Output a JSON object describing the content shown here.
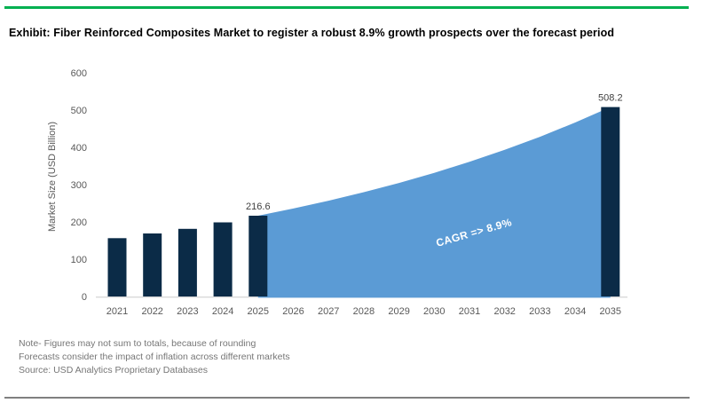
{
  "frame": {
    "top_rule_color": "#00B050",
    "bottom_rule_color": "#808080"
  },
  "header": {
    "title": "Exhibit: Fiber Reinforced Composites Market to register a robust 8.9% growth prospects over the forecast period"
  },
  "chart_data": {
    "type": "combo-bar-area",
    "title": "",
    "xlabel": "",
    "ylabel": "Market Size (USD Billion)",
    "ylim": [
      0,
      600
    ],
    "yticks": [
      0,
      100,
      200,
      300,
      400,
      500,
      600
    ],
    "grid": false,
    "legend": "none",
    "categories": [
      "2021",
      "2022",
      "2023",
      "2024",
      "2025",
      "2026",
      "2027",
      "2028",
      "2029",
      "2030",
      "2031",
      "2032",
      "2033",
      "2034",
      "2035"
    ],
    "series": [
      {
        "name": "Market Size bars",
        "type": "bar",
        "color": "#0B2B47",
        "values": [
          156.4,
          169.0,
          181.5,
          198.7,
          216.6,
          null,
          null,
          null,
          null,
          null,
          null,
          null,
          null,
          null,
          508.2
        ]
      },
      {
        "name": "Forecast area",
        "type": "area",
        "color": "#5B9BD5",
        "values": [
          null,
          null,
          null,
          null,
          216.6,
          235.9,
          256.9,
          279.7,
          304.6,
          331.7,
          361.3,
          393.4,
          428.4,
          466.6,
          508.2
        ]
      }
    ],
    "data_labels": [
      {
        "category": "2025",
        "text": "216.6"
      },
      {
        "category": "2035",
        "text": "508.2"
      }
    ],
    "annotation": {
      "text": "CAGR => 8.9%",
      "color": "#FFFFFF"
    },
    "axis_text_color": "#595959",
    "axis_line_color": "#D9D9D9",
    "data_label_color": "#404040"
  },
  "footnotes": {
    "line1": "Note- Figures may not sum to totals, because of rounding",
    "line2": "Forecasts consider the impact of inflation across different markets",
    "line3": "Source: USD Analytics Proprietary Databases"
  }
}
